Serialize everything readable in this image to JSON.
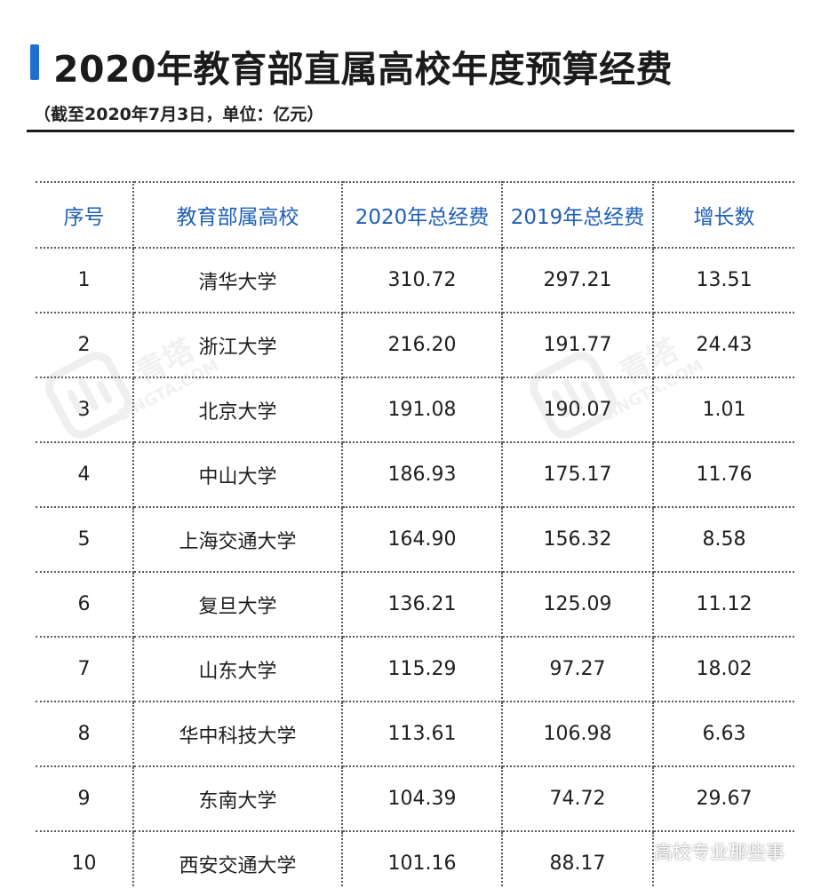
{
  "title": "2020年教育部直属高校年度预算经费",
  "subtitle": "（截至2020年7月3日，单位：亿元）",
  "table": {
    "headers": [
      "序号",
      "教育部属高校",
      "2020年总经费",
      "2019年总经费",
      "增长数"
    ],
    "rows": [
      [
        "1",
        "清华大学",
        "310.72",
        "297.21",
        "13.51"
      ],
      [
        "2",
        "浙江大学",
        "216.20",
        "191.77",
        "24.43"
      ],
      [
        "3",
        "北京大学",
        "191.08",
        "190.07",
        "1.01"
      ],
      [
        "4",
        "中山大学",
        "186.93",
        "175.17",
        "11.76"
      ],
      [
        "5",
        "上海交通大学",
        "164.90",
        "156.32",
        "8.58"
      ],
      [
        "6",
        "复旦大学",
        "136.21",
        "125.09",
        "11.12"
      ],
      [
        "7",
        "山东大学",
        "115.29",
        "97.27",
        "18.02"
      ],
      [
        "8",
        "华中科技大学",
        "113.61",
        "106.98",
        "6.63"
      ],
      [
        "9",
        "东南大学",
        "104.39",
        "74.72",
        "29.67"
      ],
      [
        "10",
        "西安交通大学",
        "101.16",
        "88.17",
        ""
      ]
    ]
  },
  "watermark": {
    "text": "青塔",
    "subtext": "CINGTA.COM"
  },
  "wechat_watermark": {
    "text": "高校专业那些事",
    "icon": "wechat-icon"
  },
  "colors": {
    "accent": "#1f6fd1",
    "header_text": "#1f5fb6"
  }
}
